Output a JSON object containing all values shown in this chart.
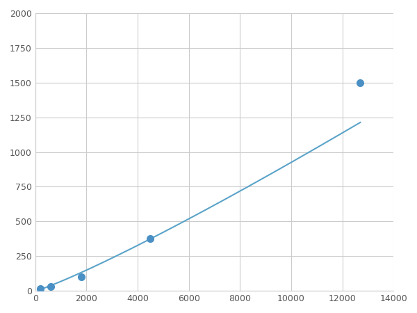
{
  "x_points": [
    200,
    600,
    1800,
    4500,
    12700
  ],
  "y_points": [
    15,
    30,
    100,
    375,
    1500
  ],
  "line_color": "#5ba3c9",
  "marker_color": "#4a90c4",
  "marker_size": 7,
  "marker_style": "o",
  "line_width": 1.5,
  "xlim": [
    0,
    14000
  ],
  "ylim": [
    0,
    2000
  ],
  "xticks": [
    0,
    2000,
    4000,
    6000,
    8000,
    10000,
    12000,
    14000
  ],
  "yticks": [
    0,
    250,
    500,
    750,
    1000,
    1250,
    1500,
    1750,
    2000
  ],
  "grid": true,
  "grid_color": "#cccccc",
  "grid_linewidth": 0.8,
  "background_color": "#ffffff",
  "spine_color": "#cccccc",
  "figsize": [
    6.0,
    4.5
  ],
  "dpi": 100
}
